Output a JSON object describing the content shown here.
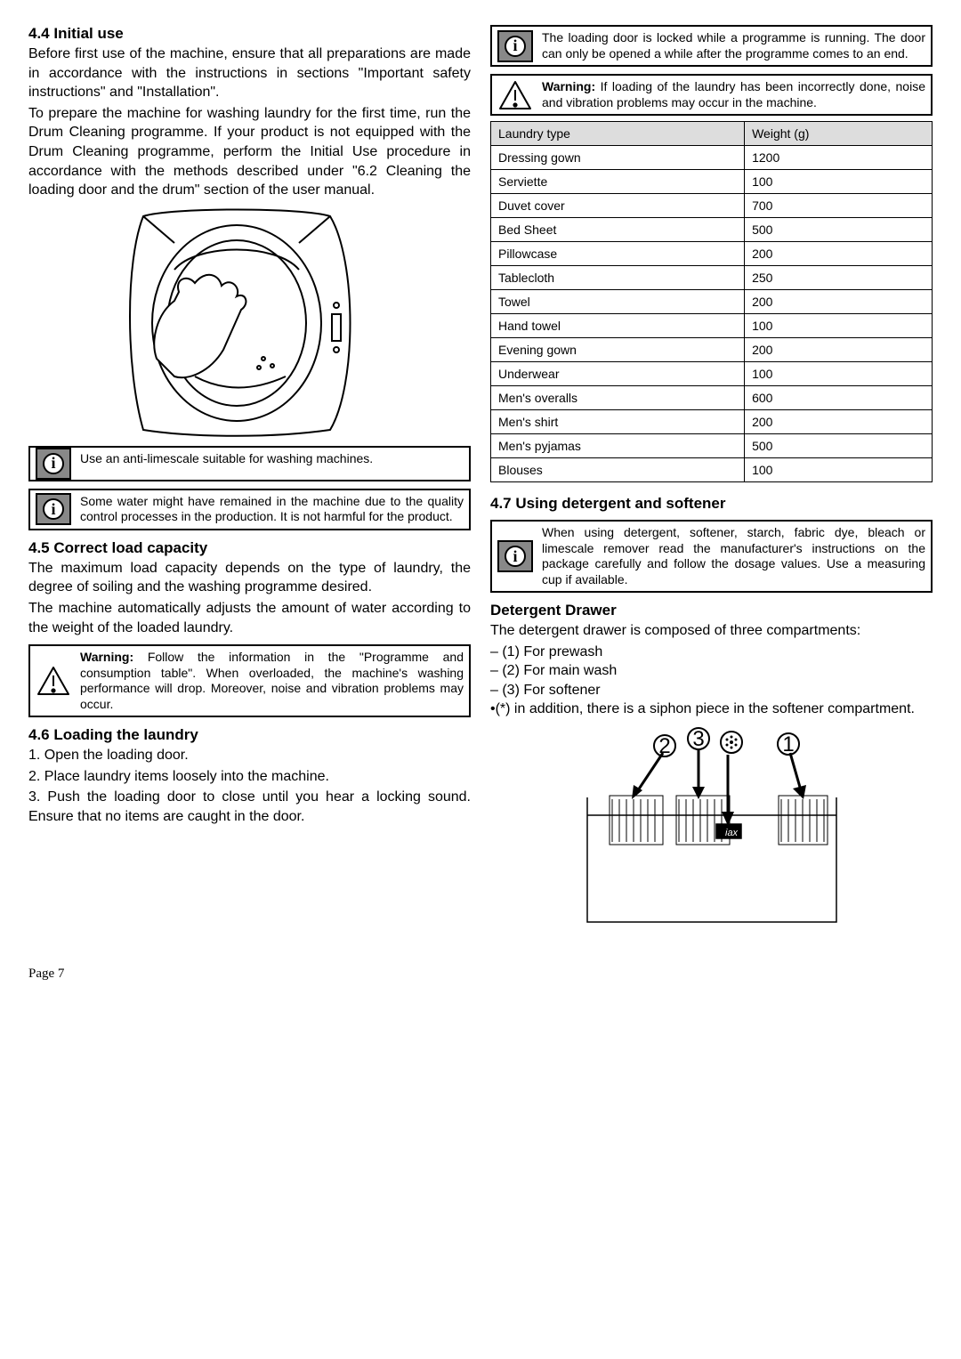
{
  "left": {
    "s44_title": "4.4 Initial use",
    "s44_p1": "Before first use of the machine, ensure that all preparations are made in accordance with the instructions in sections \"Important safety instructions\" and \"Installation\".",
    "s44_p2": "To prepare the machine for washing laundry for the first time,  run the Drum Cleaning programme. If your product is not equipped with the Drum Cleaning programme, perform the Initial Use procedure in accordance with the methods described under \"6.2 Cleaning the loading door and the drum\" section of the user manual.",
    "info1": "Use an anti-limescale suitable for washing machines.",
    "info2": "Some water might have remained in the machine due to the quality control processes in the production. It is not harmful for the product.",
    "s45_title": "4.5 Correct load capacity",
    "s45_p1": "The maximum load capacity depends on the type of laundry, the degree of soiling and the washing programme desired.",
    "s45_p2": "The machine automatically adjusts the amount of water according to the weight of the loaded laundry.",
    "warn1_prefix": "Warning:",
    "warn1": " Follow the information in the \"Programme and consumption table\". When overloaded, the machine's washing performance will drop. Moreover, noise and vibration problems may occur.",
    "s46_title": "4.6 Loading the laundry",
    "s46_l1": "1. Open the loading door.",
    "s46_l2": "2. Place laundry items loosely into the machine.",
    "s46_l3": "3. Push the loading door to close until you hear a locking sound. Ensure that no items are caught in the door."
  },
  "right": {
    "info3": "The loading door is locked while a programme is running. The door can only be opened a while after the programme comes to an end.",
    "warn2_prefix": "Warning:",
    "warn2": " If loading of the laundry has been incorrectly done, noise and vibration problems may occur in the machine.",
    "table": {
      "header": [
        "Laundry type",
        "Weight (g)"
      ],
      "rows": [
        [
          "Dressing gown",
          "1200"
        ],
        [
          "Serviette",
          "100"
        ],
        [
          "Duvet cover",
          "700"
        ],
        [
          "Bed Sheet",
          "500"
        ],
        [
          "Pillowcase",
          "200"
        ],
        [
          "Tablecloth",
          "250"
        ],
        [
          "Towel",
          "200"
        ],
        [
          "Hand towel",
          "100"
        ],
        [
          "Evening gown",
          "200"
        ],
        [
          "Underwear",
          "100"
        ],
        [
          "Men's overalls",
          "600"
        ],
        [
          "Men's shirt",
          "200"
        ],
        [
          "Men's pyjamas",
          "500"
        ],
        [
          "Blouses",
          "100"
        ]
      ]
    },
    "s47_title": "4.7 Using detergent and softener",
    "info4": "When using detergent, softener, starch, fabric dye, bleach or limescale remover read the manufacturer's instructions on the package carefully and follow the dosage values. Use a measuring cup if available.",
    "dd_title": "Detergent Drawer",
    "dd_p": "The detergent drawer is composed of three compartments:",
    "dd_items": [
      "– (1) For prewash",
      "– (2) For main wash",
      "– (3) For softener"
    ],
    "dd_note": "•(*) in addition, there is a siphon piece in the softener compartment."
  },
  "page_label": "Page 7",
  "diagram_labels": {
    "c1": "①",
    "c2": "②",
    "c3": "③",
    "flower": "✿"
  }
}
